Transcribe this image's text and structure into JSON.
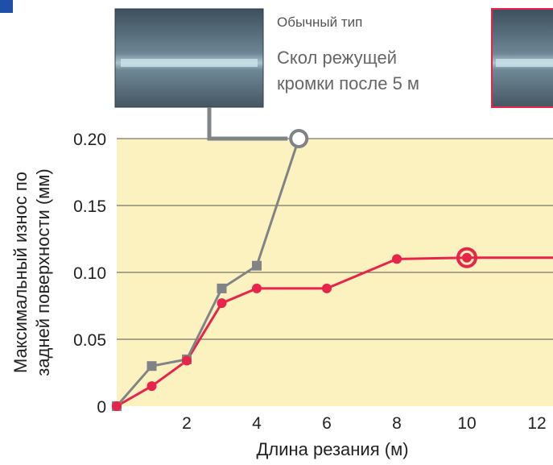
{
  "colors": {
    "plot_background": "#fbf2c0",
    "gridline": "#555555",
    "conventional_series": "#808487",
    "new_series": "#e8244a",
    "photo_frame_accent": "#e8244a"
  },
  "annotation": {
    "caption_top": "Обычный тип",
    "caption_line1": "Скол режущей",
    "caption_line2": "кромки после 5 м"
  },
  "chart_data": {
    "type": "line",
    "xlabel": "Длина резания (м)",
    "ylabel_line1": "Максимальный износ по",
    "ylabel_line2": "задней поверхности (мм)",
    "xlim": [
      0,
      12
    ],
    "ylim": [
      0,
      0.2
    ],
    "x_ticks": [
      2,
      4,
      6,
      8,
      10,
      12
    ],
    "y_ticks": [
      0,
      0.05,
      0.1,
      0.15,
      0.2
    ],
    "x_tick_labels": [
      "2",
      "4",
      "6",
      "8",
      "10",
      "12"
    ],
    "y_tick_labels": [
      "0",
      "0.05",
      "0.10",
      "0.15",
      "0.20"
    ],
    "grid": "horizontal",
    "series": [
      {
        "key": "conventional",
        "marker": "square",
        "points": [
          [
            0,
            0
          ],
          [
            1,
            0.03
          ],
          [
            2,
            0.035
          ],
          [
            3,
            0.088
          ],
          [
            4,
            0.105
          ],
          [
            5.2,
            0.2
          ]
        ],
        "end_marker": "open-circle"
      },
      {
        "key": "new",
        "marker": "circle",
        "points": [
          [
            0,
            0
          ],
          [
            1,
            0.015
          ],
          [
            2,
            0.034
          ],
          [
            3,
            0.077
          ],
          [
            4,
            0.088
          ],
          [
            6,
            0.088
          ],
          [
            8,
            0.11
          ],
          [
            10,
            0.111
          ]
        ],
        "end_marker": "open-circle",
        "continues_beyond_x": 12
      }
    ]
  }
}
